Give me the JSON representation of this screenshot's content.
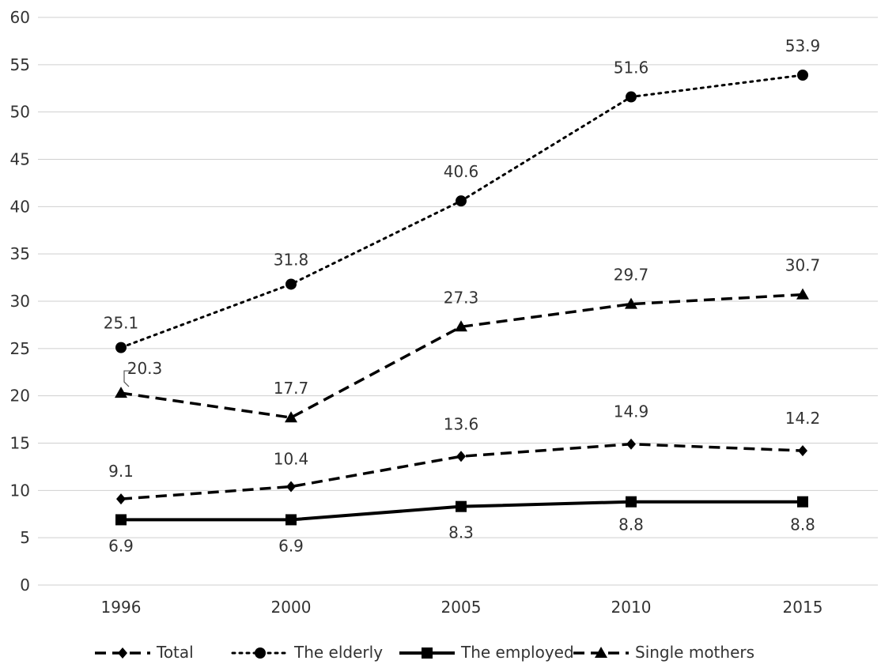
{
  "chart_data": {
    "type": "line",
    "x": [
      "1996",
      "2000",
      "2005",
      "2010",
      "2015"
    ],
    "ylim": [
      0,
      60
    ],
    "yticks": [
      0,
      5,
      10,
      15,
      20,
      25,
      30,
      35,
      40,
      45,
      50,
      55,
      60
    ],
    "grid": true,
    "legend_position": "bottom",
    "series": [
      {
        "name": "Total",
        "values": [
          9.1,
          10.4,
          13.6,
          14.9,
          14.2
        ],
        "labels": [
          "9.1",
          "10.4",
          "13.6",
          "14.9",
          "14.2"
        ],
        "marker": "diamond",
        "dash": "dashed",
        "color": "#000000"
      },
      {
        "name": "The elderly",
        "values": [
          25.1,
          31.8,
          40.6,
          51.6,
          53.9
        ],
        "labels": [
          "25.1",
          "31.8",
          "40.6",
          "51.6",
          "53.9"
        ],
        "marker": "circle",
        "dash": "dotted",
        "color": "#000000"
      },
      {
        "name": "The employed",
        "values": [
          6.9,
          6.9,
          8.3,
          8.8,
          8.8
        ],
        "labels": [
          "6.9",
          "6.9",
          "8.3",
          "8.8",
          "8.8"
        ],
        "marker": "square",
        "dash": "solid",
        "color": "#000000"
      },
      {
        "name": "Single mothers",
        "values": [
          20.3,
          17.7,
          27.3,
          29.7,
          30.7
        ],
        "labels": [
          "20.3",
          "17.7",
          "27.3",
          "29.7",
          "30.7"
        ],
        "marker": "triangle",
        "dash": "dashed",
        "color": "#000000"
      }
    ]
  }
}
